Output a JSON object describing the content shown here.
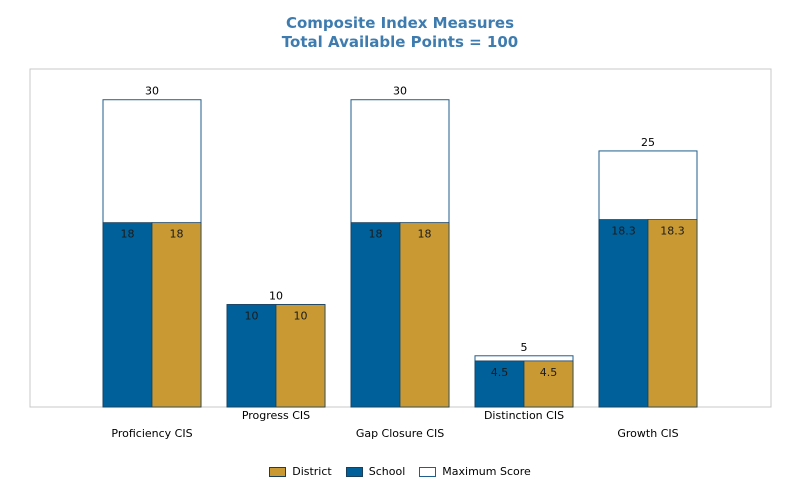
{
  "chart_data": {
    "type": "bar",
    "title": "Composite Index Measures",
    "subtitle": "Total Available Points = 100",
    "categories": [
      "Proficiency CIS",
      "Progress CIS",
      "Gap Closure CIS",
      "Distinction CIS",
      "Growth CIS"
    ],
    "series": [
      {
        "name": "Maximum Score",
        "values": [
          30,
          10,
          30,
          5,
          25
        ],
        "color": "#ffffff",
        "stroke": "#1f5d8c"
      },
      {
        "name": "School",
        "values": [
          18,
          10,
          18,
          4.5,
          18.3
        ],
        "color": "#00619a"
      },
      {
        "name": "District",
        "values": [
          18,
          10,
          18,
          4.5,
          18.3
        ],
        "color": "#c99a34"
      }
    ],
    "ylim": [
      0,
      33
    ],
    "grid": false,
    "legend_position": "bottom-center",
    "legend_order": [
      "District",
      "School",
      "Maximum Score"
    ]
  }
}
